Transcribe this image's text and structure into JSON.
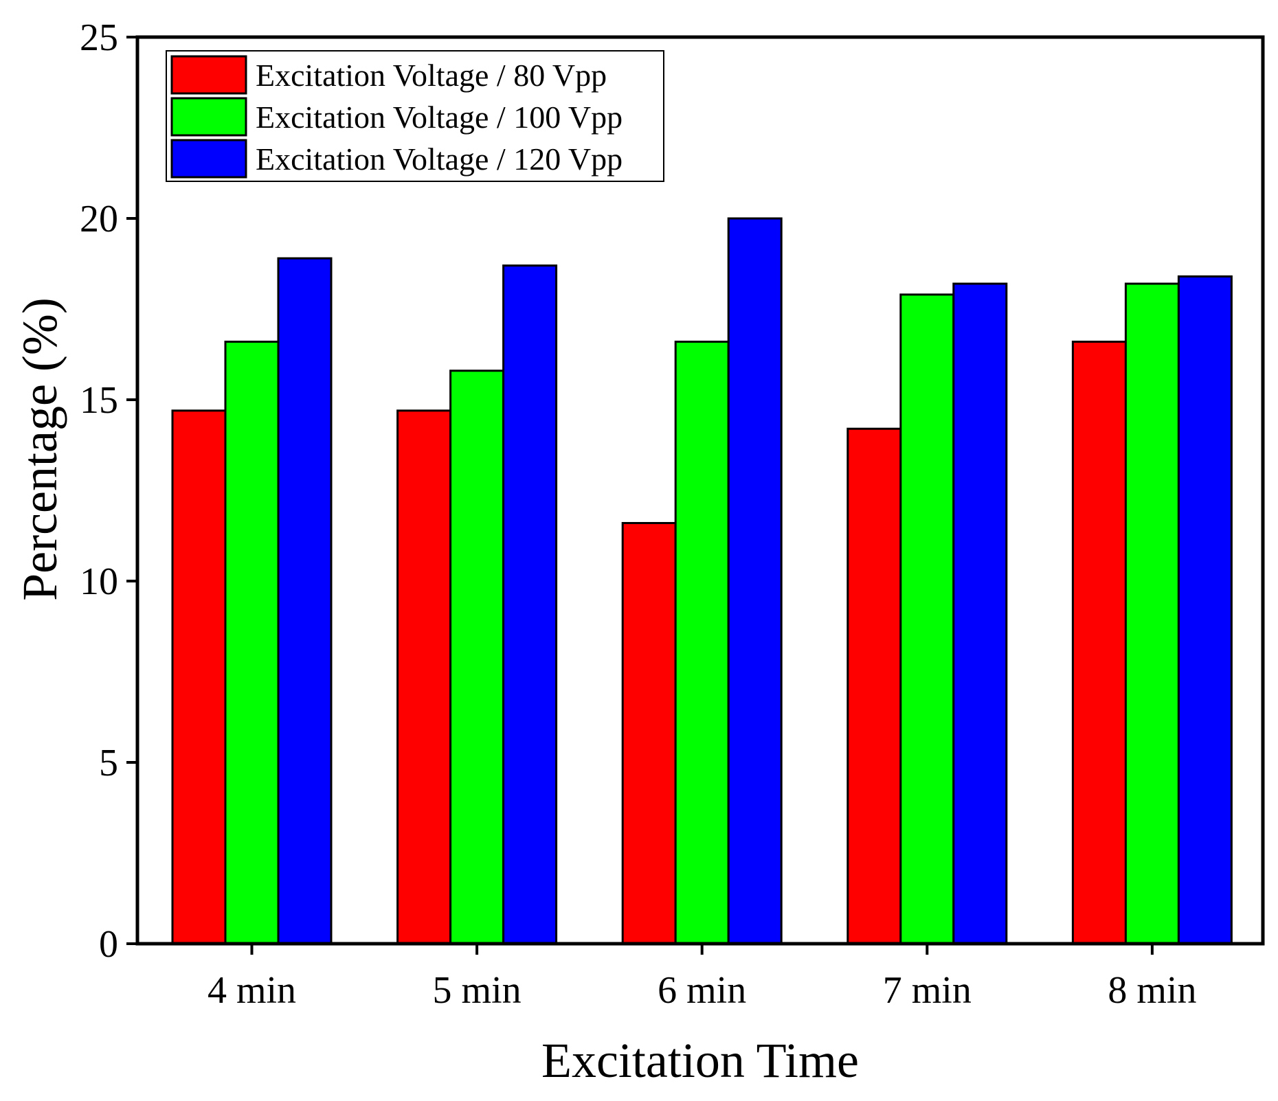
{
  "chart_data": {
    "type": "bar",
    "categories": [
      "4 min",
      "5 min",
      "6 min",
      "7 min",
      "8 min"
    ],
    "series": [
      {
        "name": "Excitation Voltage / 80 Vpp",
        "color": "#ff0000",
        "values": [
          14.7,
          14.7,
          11.6,
          14.2,
          16.6
        ]
      },
      {
        "name": "Excitation Voltage / 100 Vpp",
        "color": "#00ff00",
        "values": [
          16.6,
          15.8,
          16.6,
          17.9,
          18.2
        ]
      },
      {
        "name": "Excitation Voltage / 120 Vpp",
        "color": "#0000ff",
        "values": [
          18.9,
          18.7,
          20.0,
          18.2,
          18.4
        ]
      }
    ],
    "title": "",
    "xlabel": "Excitation Time",
    "ylabel": "Percentage (%)",
    "ylim": [
      0,
      25
    ],
    "yticks": [
      0,
      5,
      10,
      15,
      20,
      25
    ],
    "grid": false,
    "legend": "top-left"
  }
}
